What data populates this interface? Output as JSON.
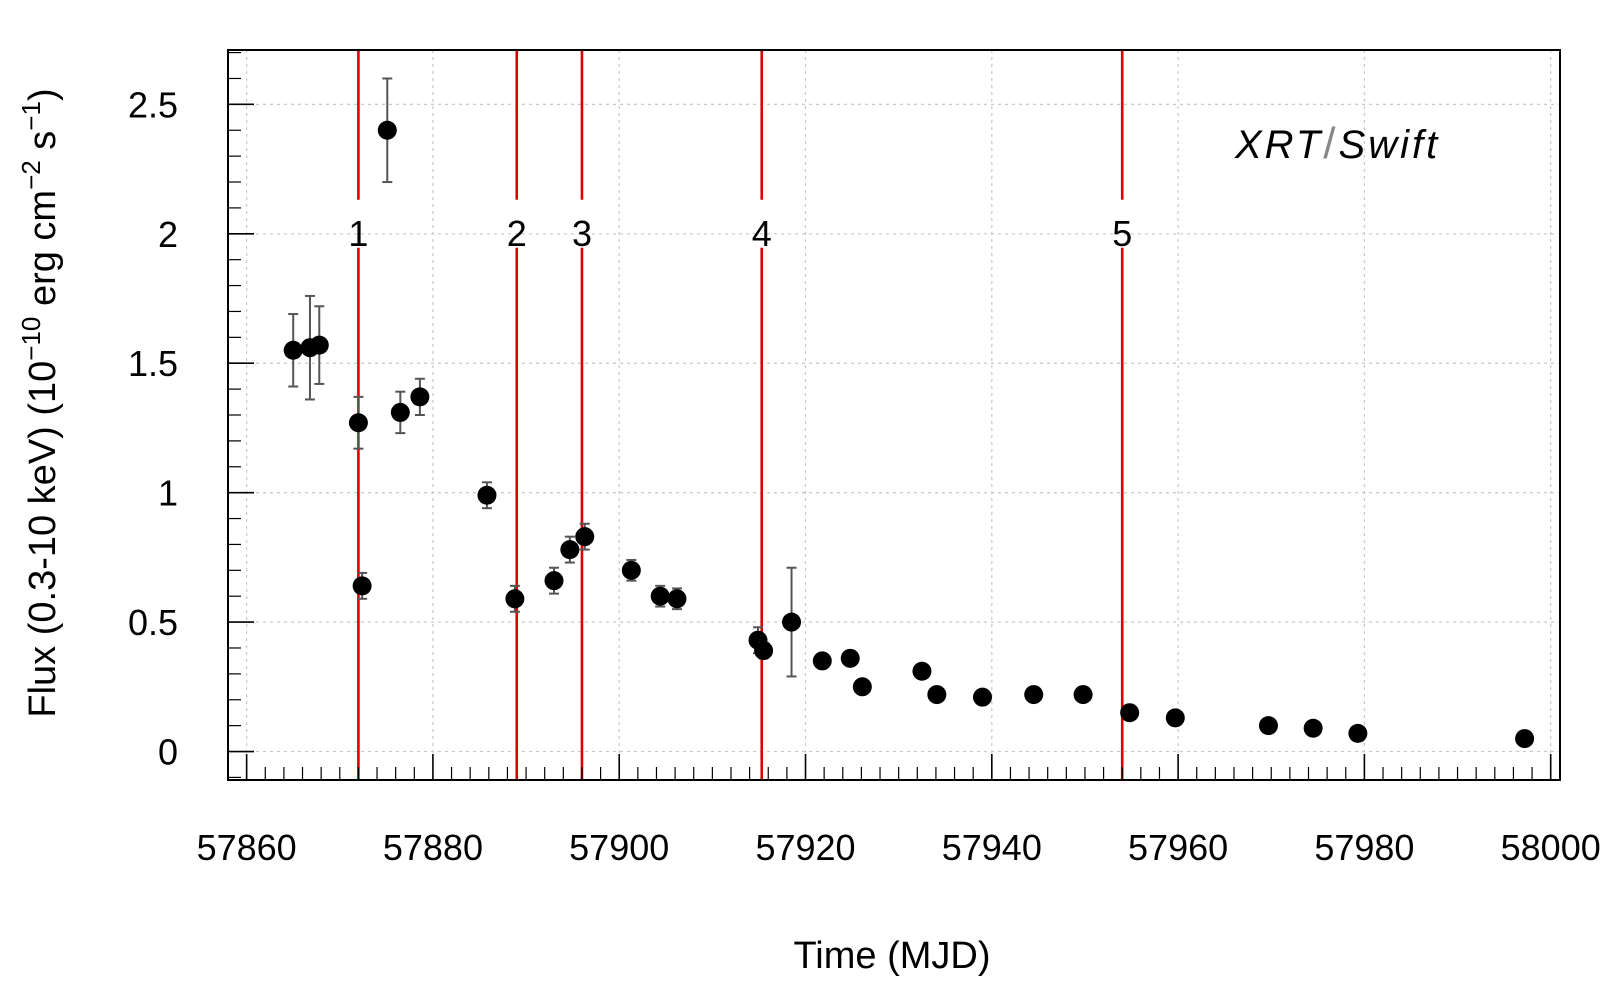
{
  "chart_data": {
    "type": "scatter",
    "title": "",
    "xlabel": "Time (MJD)",
    "ylabel_parts": {
      "prefix": "Flux (0.3-10 keV) (10",
      "exp1": "−10",
      "mid": " erg cm",
      "exp2": "−2",
      "mid2": " s",
      "exp3": "−1",
      "suffix": ")"
    },
    "annotation": {
      "part1": "XRT",
      "sep": "/",
      "part2": "Swift"
    },
    "xlim": [
      57858,
      58001
    ],
    "ylim": [
      -0.11,
      2.71
    ],
    "x_ticks": [
      57860,
      57880,
      57900,
      57920,
      57940,
      57960,
      57980,
      58000
    ],
    "x_tick_labels": [
      "57860",
      "57880",
      "57900",
      "57920",
      "57940",
      "57960",
      "57980",
      "58000"
    ],
    "y_ticks": [
      0,
      0.5,
      1,
      1.5,
      2,
      2.5
    ],
    "y_tick_labels": [
      "0",
      "0.5",
      "1",
      "1.5",
      "2",
      "2.5"
    ],
    "grid": true,
    "marker_color": "#000000",
    "errorbar_color": "#555555",
    "vline_color": "#dd0000",
    "vertical_lines": [
      {
        "x": 57872.0,
        "label": "1"
      },
      {
        "x": 57889.0,
        "label": "2"
      },
      {
        "x": 57896.0,
        "label": "3"
      },
      {
        "x": 57915.3,
        "label": "4"
      },
      {
        "x": 57954.0,
        "label": "5"
      }
    ],
    "points": [
      {
        "x": 57865.0,
        "y": 1.55,
        "err": 0.14
      },
      {
        "x": 57866.8,
        "y": 1.56,
        "err": 0.2
      },
      {
        "x": 57867.8,
        "y": 1.57,
        "err": 0.15
      },
      {
        "x": 57872.0,
        "y": 1.27,
        "err": 0.1
      },
      {
        "x": 57872.4,
        "y": 0.64,
        "err": 0.05
      },
      {
        "x": 57875.1,
        "y": 2.4,
        "err": 0.2
      },
      {
        "x": 57876.5,
        "y": 1.31,
        "err": 0.08
      },
      {
        "x": 57878.6,
        "y": 1.37,
        "err": 0.07
      },
      {
        "x": 57885.8,
        "y": 0.99,
        "err": 0.05
      },
      {
        "x": 57888.8,
        "y": 0.59,
        "err": 0.05
      },
      {
        "x": 57893.0,
        "y": 0.66,
        "err": 0.05
      },
      {
        "x": 57894.7,
        "y": 0.78,
        "err": 0.05
      },
      {
        "x": 57896.3,
        "y": 0.83,
        "err": 0.05
      },
      {
        "x": 57901.3,
        "y": 0.7,
        "err": 0.04
      },
      {
        "x": 57904.4,
        "y": 0.6,
        "err": 0.04
      },
      {
        "x": 57906.2,
        "y": 0.59,
        "err": 0.04
      },
      {
        "x": 57914.9,
        "y": 0.43,
        "err": 0.05
      },
      {
        "x": 57915.5,
        "y": 0.39,
        "err": 0.03
      },
      {
        "x": 57918.5,
        "y": 0.5,
        "err": 0.21
      },
      {
        "x": 57921.8,
        "y": 0.35,
        "err": 0.02
      },
      {
        "x": 57924.8,
        "y": 0.36,
        "err": 0.02
      },
      {
        "x": 57926.1,
        "y": 0.25,
        "err": 0.02
      },
      {
        "x": 57932.5,
        "y": 0.31,
        "err": 0.02
      },
      {
        "x": 57934.1,
        "y": 0.22,
        "err": 0.02
      },
      {
        "x": 57939.0,
        "y": 0.21,
        "err": 0.02
      },
      {
        "x": 57944.5,
        "y": 0.22,
        "err": 0.02
      },
      {
        "x": 57949.8,
        "y": 0.22,
        "err": 0.02
      },
      {
        "x": 57954.8,
        "y": 0.15,
        "err": 0.02
      },
      {
        "x": 57959.7,
        "y": 0.13,
        "err": 0.02
      },
      {
        "x": 57969.7,
        "y": 0.1,
        "err": 0.02
      },
      {
        "x": 57974.5,
        "y": 0.09,
        "err": 0.02
      },
      {
        "x": 57979.3,
        "y": 0.07,
        "err": 0.02
      },
      {
        "x": 57997.2,
        "y": 0.05,
        "err": 0.02
      }
    ]
  }
}
